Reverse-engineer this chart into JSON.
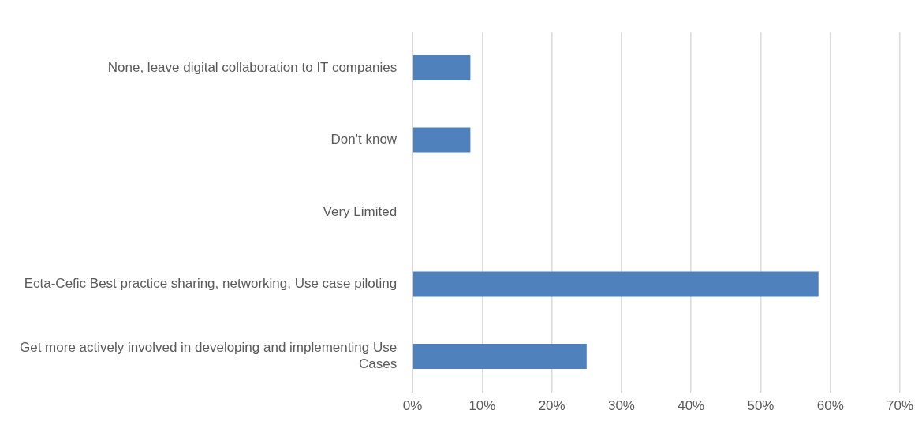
{
  "chart_data": {
    "type": "bar",
    "orientation": "horizontal",
    "categories": [
      "None, leave digital collaboration to IT companies",
      "Don't know",
      "Very Limited",
      "Ecta-Cefic Best practice sharing, networking, Use case piloting",
      "Get more actively involved in developing and implementing Use Cases"
    ],
    "values": [
      8.3,
      8.3,
      0,
      58.3,
      25
    ],
    "color": "#4f81bd",
    "xlim": [
      0,
      70
    ],
    "xticks": [
      {
        "value": 0,
        "label": "0%"
      },
      {
        "value": 10,
        "label": "10%"
      },
      {
        "value": 20,
        "label": "20%"
      },
      {
        "value": 30,
        "label": "30%"
      },
      {
        "value": 40,
        "label": "40%"
      },
      {
        "value": 50,
        "label": "50%"
      },
      {
        "value": 60,
        "label": "60%"
      },
      {
        "value": 70,
        "label": "70%"
      }
    ],
    "grid": "x",
    "legend": false
  }
}
